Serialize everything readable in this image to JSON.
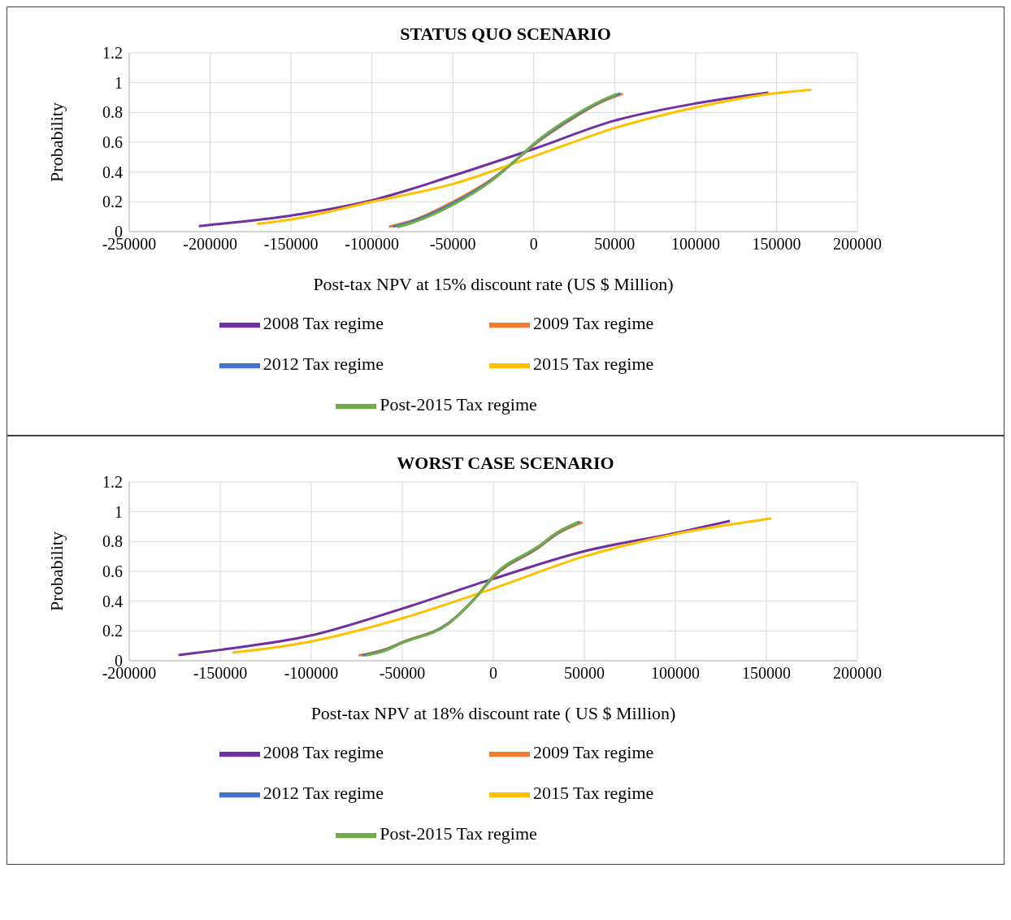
{
  "chart_data": [
    {
      "type": "line",
      "title": "STATUS QUO SCENARIO",
      "xlabel": "Post-tax NPV at 15% discount rate (US $ Million)",
      "ylabel": "Probability",
      "xlim": [
        -250000,
        200000
      ],
      "xticks": [
        -250000,
        -200000,
        -150000,
        -100000,
        -50000,
        0,
        50000,
        100000,
        150000,
        200000
      ],
      "ylim": [
        0,
        1.2
      ],
      "yticks": [
        0,
        0.2,
        0.4,
        0.6,
        0.8,
        1,
        1.2
      ],
      "grid": true,
      "legend": "bottom",
      "marker": "none",
      "line_style": "solid",
      "series": [
        {
          "name": "2008 Tax regime",
          "color": "#7030a0",
          "x": [
            -207000,
            -200000,
            -150000,
            -100000,
            -50000,
            0,
            50000,
            100000,
            145000
          ],
          "values": [
            0.037,
            0.045,
            0.108,
            0.21,
            0.375,
            0.555,
            0.745,
            0.86,
            0.933
          ]
        },
        {
          "name": "2009 Tax regime",
          "color": "#ed7d31",
          "x": [
            -89500,
            -75000,
            -50000,
            -25000,
            -10000,
            0,
            25000,
            40000,
            55000
          ],
          "values": [
            0.033,
            0.075,
            0.2,
            0.36,
            0.49,
            0.58,
            0.765,
            0.86,
            0.925
          ]
        },
        {
          "name": "2012 Tax regime",
          "color": "#4472c4",
          "x": [
            -87000,
            -75000,
            -50000,
            -25000,
            -10000,
            0,
            25000,
            40000,
            53500
          ],
          "values": [
            0.032,
            0.07,
            0.19,
            0.355,
            0.49,
            0.585,
            0.772,
            0.865,
            0.928
          ]
        },
        {
          "name": "2015 Tax regime",
          "color": "#ffc000",
          "x": [
            -171000,
            -150000,
            -100000,
            -50000,
            0,
            50000,
            100000,
            150000,
            171500
          ],
          "values": [
            0.052,
            0.082,
            0.2,
            0.32,
            0.505,
            0.695,
            0.833,
            0.93,
            0.952
          ]
        },
        {
          "name": "Post-2015 Tax regime",
          "color": "#70ad47",
          "x": [
            -84500,
            -75000,
            -50000,
            -25000,
            -10000,
            0,
            25000,
            40000,
            51500
          ],
          "values": [
            0.03,
            0.06,
            0.18,
            0.35,
            0.49,
            0.59,
            0.78,
            0.87,
            0.925
          ]
        }
      ]
    },
    {
      "type": "line",
      "title": "WORST CASE SCENARIO",
      "xlabel": "Post-tax NPV at 18% discount rate ( US $ Million)",
      "ylabel": "Probability",
      "xlim": [
        -200000,
        200000
      ],
      "xticks": [
        -200000,
        -150000,
        -100000,
        -50000,
        0,
        50000,
        100000,
        150000,
        200000
      ],
      "ylim": [
        0,
        1.2
      ],
      "yticks": [
        0,
        0.2,
        0.4,
        0.6,
        0.8,
        1,
        1.2
      ],
      "grid": true,
      "legend": "bottom",
      "marker": "none",
      "line_style": "solid",
      "series": [
        {
          "name": "2008 Tax regime",
          "color": "#7030a0",
          "x": [
            -173000,
            -150000,
            -100000,
            -50000,
            0,
            50000,
            100000,
            130000
          ],
          "values": [
            0.038,
            0.073,
            0.17,
            0.35,
            0.55,
            0.735,
            0.857,
            0.938
          ]
        },
        {
          "name": "2009 Tax regime",
          "color": "#ed7d31",
          "x": [
            -74000,
            -60000,
            -50000,
            -25000,
            -10000,
            0,
            25000,
            35000,
            49000
          ],
          "values": [
            0.035,
            0.075,
            0.125,
            0.25,
            0.42,
            0.56,
            0.76,
            0.85,
            0.93
          ]
        },
        {
          "name": "2012 Tax regime",
          "color": "#4472c4",
          "x": [
            -72000,
            -60000,
            -50000,
            -25000,
            -10000,
            0,
            25000,
            35000,
            47500
          ],
          "values": [
            0.035,
            0.07,
            0.122,
            0.248,
            0.42,
            0.565,
            0.765,
            0.855,
            0.932
          ]
        },
        {
          "name": "2015 Tax regime",
          "color": "#ffc000",
          "x": [
            -143500,
            -100000,
            -50000,
            0,
            50000,
            100000,
            150000,
            152800
          ],
          "values": [
            0.054,
            0.13,
            0.285,
            0.485,
            0.7,
            0.85,
            0.95,
            0.955
          ]
        },
        {
          "name": "Post-2015 Tax regime",
          "color": "#70ad47",
          "x": [
            -70000,
            -60000,
            -50000,
            -25000,
            -10000,
            0,
            25000,
            35000,
            46500
          ],
          "values": [
            0.035,
            0.065,
            0.12,
            0.245,
            0.42,
            0.57,
            0.77,
            0.86,
            0.93
          ]
        }
      ]
    }
  ]
}
